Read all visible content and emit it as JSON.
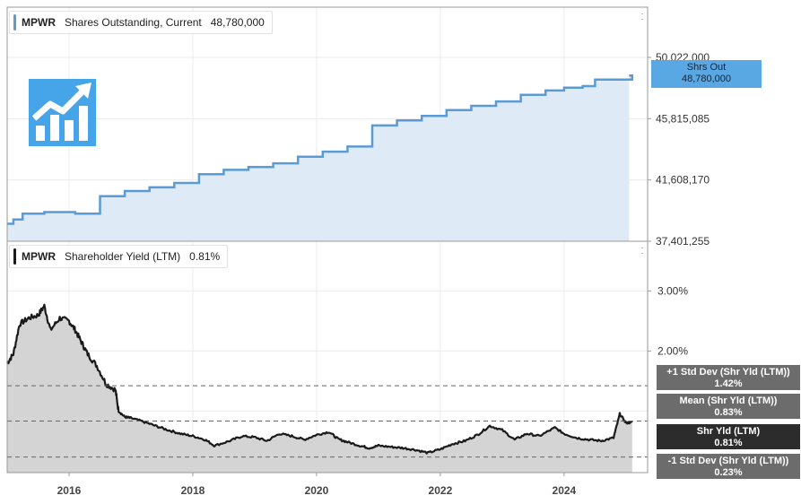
{
  "ticker": "MPWR",
  "colors": {
    "shares_line": "#5b9bd5",
    "shares_fill": "#deebf7",
    "yield_line": "#1a1a1a",
    "yield_fill": "#d4d4d4",
    "grid": "#ececec",
    "ref_line": "#666666"
  },
  "top_panel": {
    "legend": {
      "ticker": "MPWR",
      "metric": "Shares Outstanding, Current",
      "value": "48,780,000"
    },
    "flag": {
      "label": "Shrs Out",
      "value": "48,780,000"
    }
  },
  "bottom_panel": {
    "legend": {
      "ticker": "MPWR",
      "metric": "Shareholder Yield (LTM)",
      "value": "0.81%"
    },
    "flags": [
      {
        "label": "+1 Std Dev (Shr Yld (LTM))",
        "value": "1.42%"
      },
      {
        "label": "Mean (Shr Yld (LTM))",
        "value": "0.83%"
      },
      {
        "label": "Shr Yld (LTM)",
        "value": "0.81%"
      },
      {
        "label": "-1 Std Dev (Shr Yld (LTM))",
        "value": "0.23%"
      }
    ]
  },
  "chart_data": [
    {
      "type": "line",
      "area": true,
      "step": true,
      "series": [
        {
          "name": "Shares Outstanding, Current",
          "x": [
            2015.0,
            2015.1,
            2015.25,
            2015.6,
            2016.1,
            2016.5,
            2016.9,
            2017.3,
            2017.7,
            2018.1,
            2018.5,
            2018.9,
            2019.3,
            2019.7,
            2020.1,
            2020.5,
            2020.9,
            2021.3,
            2021.7,
            2022.1,
            2022.5,
            2022.9,
            2023.3,
            2023.7,
            2024.0,
            2024.3,
            2024.5,
            2025.1
          ],
          "y": [
            38.6,
            38.9,
            39.3,
            39.4,
            39.3,
            40.5,
            40.85,
            41.1,
            41.4,
            42.0,
            42.3,
            42.5,
            42.75,
            43.2,
            43.55,
            43.9,
            45.35,
            45.7,
            46.0,
            46.4,
            46.7,
            47.0,
            47.45,
            47.75,
            47.95,
            48.05,
            48.5,
            48.78
          ]
        }
      ],
      "unit": "millions of shares",
      "yticks": [
        "37,401,255",
        "41,608,170",
        "45,815,085",
        "50,022,000"
      ],
      "ylim": [
        37.401255,
        50.022
      ]
    },
    {
      "type": "line",
      "area": true,
      "series": [
        {
          "name": "Shareholder Yield (LTM)",
          "x": [
            2015.0,
            2015.1,
            2015.2,
            2015.35,
            2015.5,
            2015.6,
            2015.7,
            2015.85,
            2016.0,
            2016.1,
            2016.2,
            2016.3,
            2016.45,
            2016.6,
            2016.75,
            2016.8,
            2016.9,
            2017.0,
            2017.2,
            2017.4,
            2017.6,
            2017.8,
            2018.0,
            2018.2,
            2018.35,
            2018.6,
            2018.8,
            2019.0,
            2019.2,
            2019.4,
            2019.6,
            2019.8,
            2020.0,
            2020.2,
            2020.35,
            2020.5,
            2020.7,
            2020.85,
            2021.0,
            2021.2,
            2021.4,
            2021.6,
            2021.8,
            2022.0,
            2022.2,
            2022.4,
            2022.6,
            2022.8,
            2023.0,
            2023.2,
            2023.4,
            2023.6,
            2023.85,
            2024.0,
            2024.2,
            2024.4,
            2024.6,
            2024.8,
            2024.9,
            2025.0,
            2025.1
          ],
          "y": [
            1.8,
            1.95,
            2.45,
            2.55,
            2.6,
            2.75,
            2.35,
            2.55,
            2.5,
            2.35,
            2.15,
            1.95,
            1.75,
            1.45,
            1.35,
            1.0,
            0.9,
            0.88,
            0.82,
            0.75,
            0.68,
            0.62,
            0.58,
            0.52,
            0.42,
            0.5,
            0.58,
            0.56,
            0.5,
            0.62,
            0.58,
            0.52,
            0.6,
            0.65,
            0.53,
            0.48,
            0.42,
            0.38,
            0.42,
            0.4,
            0.38,
            0.35,
            0.3,
            0.36,
            0.45,
            0.5,
            0.6,
            0.75,
            0.68,
            0.52,
            0.62,
            0.58,
            0.72,
            0.62,
            0.55,
            0.52,
            0.5,
            0.55,
            0.95,
            0.8,
            0.81
          ]
        }
      ],
      "reference_lines": [
        {
          "name": "+1 Std Dev (Shr Yld (LTM))",
          "y": 1.42
        },
        {
          "name": "Mean (Shr Yld (LTM))",
          "y": 0.83
        },
        {
          "name": "-1 Std Dev (Shr Yld (LTM))",
          "y": 0.23
        }
      ],
      "yticks": [
        "2.00%",
        "3.00%"
      ],
      "ylim": [
        0.0,
        3.3
      ]
    }
  ],
  "x_axis": {
    "labels": [
      "2016",
      "2018",
      "2020",
      "2022",
      "2024"
    ],
    "values": [
      2016,
      2018,
      2020,
      2022,
      2024
    ],
    "xlim": [
      2015.0,
      2025.35
    ]
  }
}
